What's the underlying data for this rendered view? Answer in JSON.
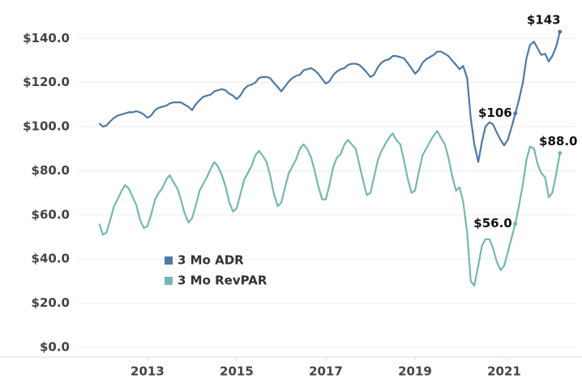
{
  "chart_data": {
    "type": "line",
    "x": [
      2011.92,
      2012.0,
      2012.08,
      2012.17,
      2012.25,
      2012.33,
      2012.42,
      2012.5,
      2012.58,
      2012.67,
      2012.75,
      2012.83,
      2012.92,
      2013.0,
      2013.08,
      2013.17,
      2013.25,
      2013.33,
      2013.42,
      2013.5,
      2013.58,
      2013.67,
      2013.75,
      2013.83,
      2013.92,
      2014.0,
      2014.08,
      2014.17,
      2014.25,
      2014.33,
      2014.42,
      2014.5,
      2014.58,
      2014.67,
      2014.75,
      2014.83,
      2014.92,
      2015.0,
      2015.08,
      2015.17,
      2015.25,
      2015.33,
      2015.42,
      2015.5,
      2015.58,
      2015.67,
      2015.75,
      2015.83,
      2015.92,
      2016.0,
      2016.08,
      2016.17,
      2016.25,
      2016.33,
      2016.42,
      2016.5,
      2016.58,
      2016.67,
      2016.75,
      2016.83,
      2016.92,
      2017.0,
      2017.08,
      2017.17,
      2017.25,
      2017.33,
      2017.42,
      2017.5,
      2017.58,
      2017.67,
      2017.75,
      2017.83,
      2017.92,
      2018.0,
      2018.08,
      2018.17,
      2018.25,
      2018.33,
      2018.42,
      2018.5,
      2018.58,
      2018.67,
      2018.75,
      2018.83,
      2018.92,
      2019.0,
      2019.08,
      2019.17,
      2019.25,
      2019.33,
      2019.42,
      2019.5,
      2019.58,
      2019.67,
      2019.75,
      2019.83,
      2019.92,
      2020.0,
      2020.08,
      2020.17,
      2020.25,
      2020.33,
      2020.42,
      2020.5,
      2020.58,
      2020.67,
      2020.75,
      2020.83,
      2020.92,
      2021.0,
      2021.08,
      2021.17,
      2021.25,
      2021.33,
      2021.42,
      2021.5,
      2021.58,
      2021.67,
      2021.75,
      2021.83,
      2021.92,
      2022.0,
      2022.08,
      2022.17,
      2022.25
    ],
    "series": [
      {
        "name": "3 Mo ADR",
        "color": "#4e79a7",
        "values": [
          101.5,
          100,
          100.5,
          102.5,
          104,
          105,
          105.5,
          106,
          106.5,
          106.5,
          107,
          106.5,
          105.5,
          104,
          105,
          107.5,
          108.5,
          109,
          109.5,
          110.5,
          111,
          111,
          111,
          110,
          109,
          107.5,
          110,
          112,
          113.5,
          114,
          114.5,
          116,
          116.5,
          117,
          116.5,
          115,
          114,
          112.5,
          114,
          117,
          118.5,
          119,
          120,
          122,
          122.5,
          122.5,
          122,
          120,
          118,
          116,
          118,
          120.5,
          122,
          123,
          123.5,
          125.5,
          126,
          126.5,
          125.5,
          124,
          121.5,
          119.5,
          120.5,
          123.5,
          125,
          126,
          126.5,
          128,
          128.5,
          128.5,
          128,
          126.5,
          124.5,
          122.5,
          123.5,
          127,
          129,
          130,
          130.5,
          132,
          132,
          131.5,
          131,
          129,
          126.5,
          124,
          125.5,
          129,
          130.5,
          131.5,
          132.5,
          134,
          134,
          133,
          132,
          130,
          128,
          126,
          127.5,
          122,
          104,
          92,
          84,
          93,
          100,
          102,
          101,
          97.5,
          94,
          91.5,
          94,
          100,
          106,
          112,
          120,
          131,
          137,
          138.5,
          135.5,
          132.5,
          133,
          129.5,
          132,
          136.5,
          143
        ],
        "value_labels": [
          null,
          null,
          null,
          null,
          null,
          null,
          null,
          null,
          null,
          null,
          null,
          null,
          null,
          null,
          null,
          null,
          null,
          null,
          null,
          null,
          null,
          null,
          null,
          null,
          null,
          null,
          null,
          null,
          null,
          null,
          null,
          null,
          null,
          null,
          null,
          null,
          null,
          null,
          null,
          null,
          null,
          null,
          null,
          null,
          null,
          null,
          null,
          null,
          null,
          null,
          null,
          null,
          null,
          null,
          null,
          null,
          null,
          null,
          null,
          null,
          null,
          null,
          null,
          null,
          null,
          null,
          null,
          null,
          null,
          null,
          null,
          null,
          null,
          null,
          null,
          null,
          null,
          null,
          null,
          null,
          null,
          null,
          null,
          null,
          null,
          null,
          null,
          null,
          null,
          null,
          null,
          null,
          null,
          null,
          null,
          null,
          null,
          null,
          null,
          null,
          null,
          null,
          null,
          null,
          null,
          null,
          null,
          null,
          null,
          null,
          null,
          null,
          "$106",
          null,
          null,
          null,
          null,
          null,
          null,
          null,
          null,
          null,
          null,
          null,
          "$143"
        ]
      },
      {
        "name": "3 Mo RevPAR",
        "color": "#76b7b2",
        "values": [
          56,
          51,
          52,
          58,
          64,
          67,
          71,
          73.5,
          72,
          68,
          64.5,
          58,
          54,
          55,
          60,
          67,
          70,
          72,
          76,
          78,
          75,
          72,
          67,
          61,
          56.5,
          58.5,
          64,
          71,
          74,
          77,
          81,
          84,
          82,
          78,
          73,
          66,
          61.5,
          63,
          69,
          76,
          79,
          82,
          87,
          89,
          87,
          84,
          78,
          70,
          64,
          65.5,
          72,
          79,
          82,
          85,
          90,
          92,
          90,
          86,
          80,
          73,
          67,
          67,
          73.5,
          82,
          86,
          87.5,
          92,
          94,
          92,
          90,
          83,
          76,
          69,
          70,
          77,
          85,
          89,
          92,
          95,
          97,
          94,
          92,
          85,
          77,
          70,
          71,
          79,
          87,
          90,
          93,
          96,
          98,
          95,
          92,
          86,
          78,
          71,
          72.5,
          66,
          52,
          30,
          28,
          37,
          46,
          49,
          49,
          45,
          39,
          35,
          37,
          43,
          50,
          56,
          64,
          74,
          85,
          91,
          90,
          83,
          79,
          77,
          68,
          70,
          79,
          88
        ],
        "value_labels": [
          null,
          null,
          null,
          null,
          null,
          null,
          null,
          null,
          null,
          null,
          null,
          null,
          null,
          null,
          null,
          null,
          null,
          null,
          null,
          null,
          null,
          null,
          null,
          null,
          null,
          null,
          null,
          null,
          null,
          null,
          null,
          null,
          null,
          null,
          null,
          null,
          null,
          null,
          null,
          null,
          null,
          null,
          null,
          null,
          null,
          null,
          null,
          null,
          null,
          null,
          null,
          null,
          null,
          null,
          null,
          null,
          null,
          null,
          null,
          null,
          null,
          null,
          null,
          null,
          null,
          null,
          null,
          null,
          null,
          null,
          null,
          null,
          null,
          null,
          null,
          null,
          null,
          null,
          null,
          null,
          null,
          null,
          null,
          null,
          null,
          null,
          null,
          null,
          null,
          null,
          null,
          null,
          null,
          null,
          null,
          null,
          null,
          null,
          null,
          null,
          null,
          null,
          null,
          null,
          null,
          null,
          null,
          null,
          null,
          null,
          null,
          null,
          "$56.0",
          null,
          null,
          null,
          null,
          null,
          null,
          null,
          null,
          null,
          null,
          null,
          "$88.0"
        ]
      }
    ],
    "xlim": [
      2011.42,
      2022.6
    ],
    "xticks": [
      2013,
      2015,
      2017,
      2019,
      2021
    ],
    "ylim": [
      -4.4,
      153.7
    ],
    "yticks": [
      {
        "value": 0,
        "label": "$0.0"
      },
      {
        "value": 20,
        "label": "$20.0"
      },
      {
        "value": 40,
        "label": "$40.0"
      },
      {
        "value": 60,
        "label": "$60.0"
      },
      {
        "value": 80,
        "label": "$80.0"
      },
      {
        "value": 100,
        "label": "$100.0"
      },
      {
        "value": 120,
        "label": "$120.0"
      },
      {
        "value": 140,
        "label": "$140.0"
      }
    ],
    "grid": true,
    "legend": "center-left"
  }
}
